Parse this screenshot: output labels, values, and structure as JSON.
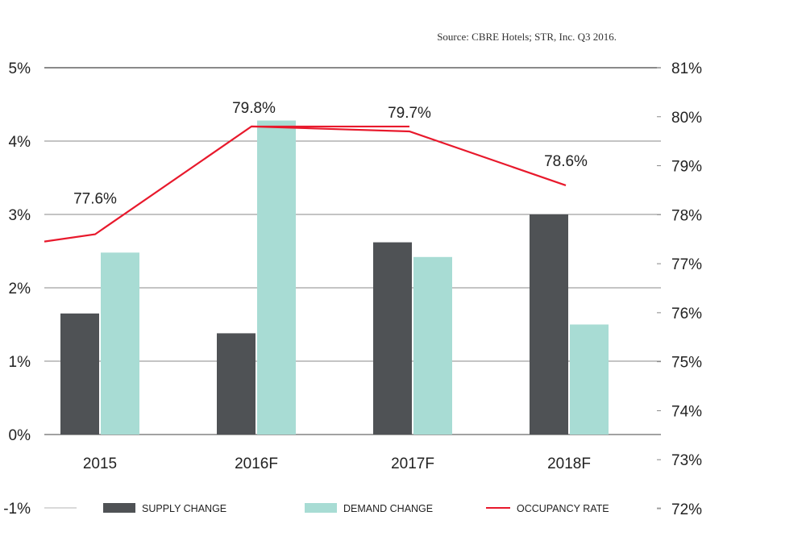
{
  "chart_data": {
    "type": "bar",
    "source": "Source: CBRE Hotels; STR, Inc. Q3 2016.",
    "categories": [
      "2015",
      "2016F",
      "2017F",
      "2018F"
    ],
    "series": [
      {
        "name": "SUPPLY CHANGE",
        "kind": "bar",
        "axis": "left",
        "color": "#4f5255",
        "values": [
          1.65,
          1.38,
          2.62,
          3.0
        ]
      },
      {
        "name": "DEMAND CHANGE",
        "kind": "bar",
        "axis": "left",
        "color": "#a8dcd4",
        "values": [
          2.48,
          4.28,
          2.42,
          1.5
        ]
      },
      {
        "name": "OCCUPANCY RATE",
        "kind": "line",
        "axis": "right",
        "color": "#e8192c",
        "values": [
          77.6,
          79.8,
          79.7,
          78.6
        ],
        "labels": [
          "77.6%",
          "79.8%",
          "79.7%",
          "78.6%"
        ]
      }
    ],
    "left_axis": {
      "min": -1,
      "max": 5,
      "ticks": [
        5,
        4,
        3,
        2,
        1,
        0,
        -1
      ],
      "tick_labels": [
        "5%",
        "4%",
        "3%",
        "2%",
        "1%",
        "0%",
        "-1%"
      ]
    },
    "right_axis": {
      "min": 72,
      "max": 81,
      "ticks": [
        81,
        80,
        79,
        78,
        77,
        76,
        75,
        74,
        73,
        72
      ],
      "tick_labels": [
        "81%",
        "80%",
        "79%",
        "78%",
        "77%",
        "76%",
        "75%",
        "74%",
        "73%",
        "72%"
      ]
    },
    "grid": true,
    "legend_position": "bottom"
  }
}
